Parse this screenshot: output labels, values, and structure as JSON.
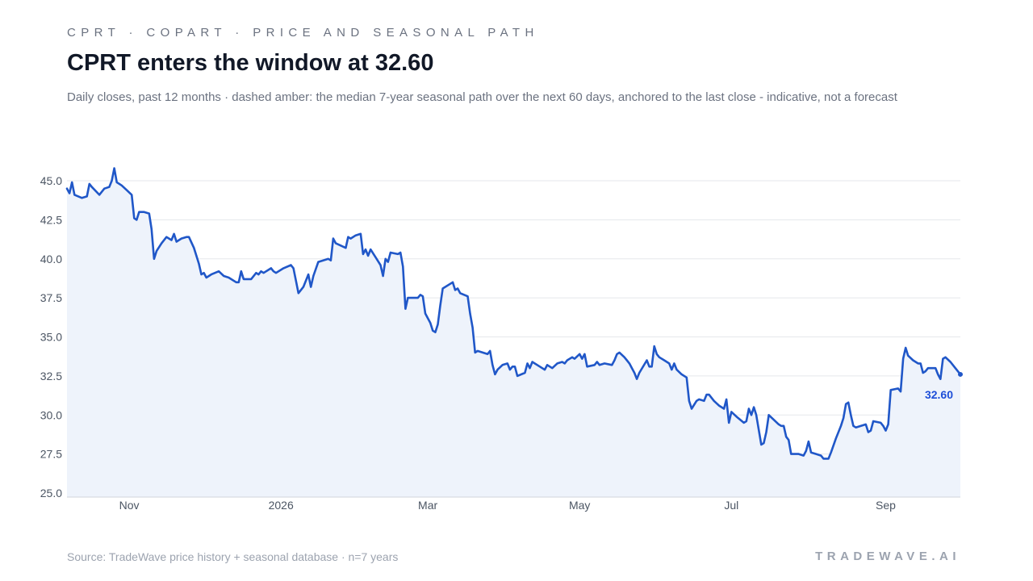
{
  "header": {
    "eyebrow": "CPRT · COPART · PRICE AND SEASONAL PATH",
    "title": "CPRT enters the window at 32.60",
    "subtitle": "Daily closes, past 12 months · dashed amber: the median 7-year seasonal path over the next 60 days, anchored to the last close - indicative, not a forecast"
  },
  "footer": {
    "source": "Source: TradeWave price history + seasonal database · n=7 years",
    "brand": "TRADEWAVE.AI"
  },
  "colors": {
    "line": "#2057c8",
    "area": "#eef3fb",
    "grid": "#e5e7eb",
    "seasonal": "#f59e0b"
  },
  "chart_data": {
    "type": "line",
    "title": "CPRT enters the window at 32.60",
    "xlabel": "",
    "ylabel": "",
    "ylim": [
      25.0,
      45.0
    ],
    "y_ticks": [
      "25.0",
      "27.5",
      "30.0",
      "32.5",
      "35.0",
      "37.5",
      "40.0",
      "42.5",
      "45.0"
    ],
    "x_ticks": [
      {
        "label": "Nov",
        "x": "2025-11-01"
      },
      {
        "label": "2026",
        "x": "2026-01-01"
      },
      {
        "label": "Mar",
        "x": "2026-03-01"
      },
      {
        "label": "May",
        "x": "2026-05-01"
      },
      {
        "label": "Jul",
        "x": "2026-07-01"
      },
      {
        "label": "Sep",
        "x": "2026-09-01"
      }
    ],
    "grid": true,
    "last_close_label": "32.60",
    "series": [
      {
        "points": [
          [
            "2025-10-07",
            44.5
          ],
          [
            "2025-10-08",
            44.2
          ],
          [
            "2025-10-09",
            44.9
          ],
          [
            "2025-10-10",
            44.1
          ],
          [
            "2025-10-13",
            43.9
          ],
          [
            "2025-10-15",
            44.0
          ],
          [
            "2025-10-16",
            44.8
          ],
          [
            "2025-10-17",
            44.6
          ],
          [
            "2025-10-20",
            44.1
          ],
          [
            "2025-10-22",
            44.5
          ],
          [
            "2025-10-24",
            44.6
          ],
          [
            "2025-10-25",
            45.0
          ],
          [
            "2025-10-26",
            45.8
          ],
          [
            "2025-10-27",
            44.9
          ],
          [
            "2025-10-29",
            44.7
          ],
          [
            "2025-10-31",
            44.4
          ],
          [
            "2025-11-02",
            44.1
          ],
          [
            "2025-11-03",
            42.6
          ],
          [
            "2025-11-04",
            42.5
          ],
          [
            "2025-11-05",
            43.0
          ],
          [
            "2025-11-07",
            43.0
          ],
          [
            "2025-11-09",
            42.9
          ],
          [
            "2025-11-10",
            41.9
          ],
          [
            "2025-11-11",
            40.0
          ],
          [
            "2025-11-12",
            40.5
          ],
          [
            "2025-11-14",
            41.0
          ],
          [
            "2025-11-16",
            41.4
          ],
          [
            "2025-11-17",
            41.3
          ],
          [
            "2025-11-18",
            41.2
          ],
          [
            "2025-11-19",
            41.6
          ],
          [
            "2025-11-20",
            41.1
          ],
          [
            "2025-11-22",
            41.3
          ],
          [
            "2025-11-24",
            41.4
          ],
          [
            "2025-11-25",
            41.4
          ],
          [
            "2025-11-27",
            40.7
          ],
          [
            "2025-11-29",
            39.7
          ],
          [
            "2025-11-30",
            39.0
          ],
          [
            "2025-12-01",
            39.1
          ],
          [
            "2025-12-02",
            38.8
          ],
          [
            "2025-12-04",
            39.0
          ],
          [
            "2025-12-07",
            39.2
          ],
          [
            "2025-12-09",
            38.9
          ],
          [
            "2025-12-11",
            38.8
          ],
          [
            "2025-12-14",
            38.5
          ],
          [
            "2025-12-15",
            38.5
          ],
          [
            "2025-12-16",
            39.2
          ],
          [
            "2025-12-17",
            38.7
          ],
          [
            "2025-12-20",
            38.7
          ],
          [
            "2025-12-22",
            39.1
          ],
          [
            "2025-12-23",
            39.0
          ],
          [
            "2025-12-24",
            39.2
          ],
          [
            "2025-12-25",
            39.1
          ],
          [
            "2025-12-28",
            39.4
          ],
          [
            "2025-12-29",
            39.2
          ],
          [
            "2025-12-30",
            39.1
          ],
          [
            "2026-01-02",
            39.4
          ],
          [
            "2026-01-05",
            39.6
          ],
          [
            "2026-01-06",
            39.4
          ],
          [
            "2026-01-07",
            38.6
          ],
          [
            "2026-01-08",
            37.8
          ],
          [
            "2026-01-10",
            38.2
          ],
          [
            "2026-01-12",
            39.0
          ],
          [
            "2026-01-13",
            38.2
          ],
          [
            "2026-01-14",
            38.9
          ],
          [
            "2026-01-16",
            39.8
          ],
          [
            "2026-01-20",
            40.0
          ],
          [
            "2026-01-21",
            39.9
          ],
          [
            "2026-01-22",
            41.3
          ],
          [
            "2026-01-23",
            41.0
          ],
          [
            "2026-01-27",
            40.7
          ],
          [
            "2026-01-28",
            41.4
          ],
          [
            "2026-01-29",
            41.3
          ],
          [
            "2026-01-31",
            41.5
          ],
          [
            "2026-02-02",
            41.6
          ],
          [
            "2026-02-03",
            40.3
          ],
          [
            "2026-02-04",
            40.6
          ],
          [
            "2026-02-05",
            40.2
          ],
          [
            "2026-02-06",
            40.6
          ],
          [
            "2026-02-08",
            40.1
          ],
          [
            "2026-02-10",
            39.6
          ],
          [
            "2026-02-11",
            38.9
          ],
          [
            "2026-02-12",
            40.0
          ],
          [
            "2026-02-13",
            39.8
          ],
          [
            "2026-02-14",
            40.4
          ],
          [
            "2026-02-17",
            40.3
          ],
          [
            "2026-02-18",
            40.4
          ],
          [
            "2026-02-19",
            39.5
          ],
          [
            "2026-02-20",
            36.8
          ],
          [
            "2026-02-21",
            37.5
          ],
          [
            "2026-02-25",
            37.5
          ],
          [
            "2026-02-26",
            37.7
          ],
          [
            "2026-02-27",
            37.6
          ],
          [
            "2026-02-28",
            36.5
          ],
          [
            "2026-03-02",
            35.9
          ],
          [
            "2026-03-03",
            35.4
          ],
          [
            "2026-03-04",
            35.3
          ],
          [
            "2026-03-05",
            35.8
          ],
          [
            "2026-03-06",
            37.0
          ],
          [
            "2026-03-07",
            38.1
          ],
          [
            "2026-03-11",
            38.5
          ],
          [
            "2026-03-12",
            38.0
          ],
          [
            "2026-03-13",
            38.1
          ],
          [
            "2026-03-14",
            37.8
          ],
          [
            "2026-03-17",
            37.6
          ],
          [
            "2026-03-18",
            36.5
          ],
          [
            "2026-03-19",
            35.6
          ],
          [
            "2026-03-20",
            34.0
          ],
          [
            "2026-03-21",
            34.1
          ],
          [
            "2026-03-25",
            33.9
          ],
          [
            "2026-03-26",
            34.1
          ],
          [
            "2026-03-27",
            33.2
          ],
          [
            "2026-03-28",
            32.6
          ],
          [
            "2026-03-29",
            32.9
          ],
          [
            "2026-03-31",
            33.2
          ],
          [
            "2026-04-02",
            33.3
          ],
          [
            "2026-04-03",
            32.9
          ],
          [
            "2026-04-04",
            33.1
          ],
          [
            "2026-04-05",
            33.1
          ],
          [
            "2026-04-06",
            32.5
          ],
          [
            "2026-04-09",
            32.7
          ],
          [
            "2026-04-10",
            33.3
          ],
          [
            "2026-04-11",
            33.0
          ],
          [
            "2026-04-12",
            33.4
          ],
          [
            "2026-04-15",
            33.1
          ],
          [
            "2026-04-17",
            32.9
          ],
          [
            "2026-04-18",
            33.2
          ],
          [
            "2026-04-20",
            33.0
          ],
          [
            "2026-04-22",
            33.3
          ],
          [
            "2026-04-24",
            33.4
          ],
          [
            "2026-04-25",
            33.3
          ],
          [
            "2026-04-26",
            33.5
          ],
          [
            "2026-04-28",
            33.7
          ],
          [
            "2026-04-29",
            33.6
          ],
          [
            "2026-05-01",
            33.9
          ],
          [
            "2026-05-02",
            33.6
          ],
          [
            "2026-05-03",
            33.9
          ],
          [
            "2026-05-04",
            33.1
          ],
          [
            "2026-05-07",
            33.2
          ],
          [
            "2026-05-08",
            33.4
          ],
          [
            "2026-05-09",
            33.2
          ],
          [
            "2026-05-11",
            33.3
          ],
          [
            "2026-05-14",
            33.2
          ],
          [
            "2026-05-15",
            33.5
          ],
          [
            "2026-05-16",
            33.9
          ],
          [
            "2026-05-17",
            34.0
          ],
          [
            "2026-05-19",
            33.7
          ],
          [
            "2026-05-20",
            33.5
          ],
          [
            "2026-05-21",
            33.3
          ],
          [
            "2026-05-22",
            33.0
          ],
          [
            "2026-05-23",
            32.7
          ],
          [
            "2026-05-24",
            32.3
          ],
          [
            "2026-05-25",
            32.7
          ],
          [
            "2026-05-28",
            33.5
          ],
          [
            "2026-05-29",
            33.1
          ],
          [
            "2026-05-30",
            33.1
          ],
          [
            "2026-05-31",
            34.4
          ],
          [
            "2026-06-01",
            33.9
          ],
          [
            "2026-06-02",
            33.7
          ],
          [
            "2026-06-04",
            33.5
          ],
          [
            "2026-06-06",
            33.3
          ],
          [
            "2026-06-07",
            32.9
          ],
          [
            "2026-06-08",
            33.3
          ],
          [
            "2026-06-09",
            32.9
          ],
          [
            "2026-06-11",
            32.6
          ],
          [
            "2026-06-13",
            32.4
          ],
          [
            "2026-06-14",
            30.9
          ],
          [
            "2026-06-15",
            30.4
          ],
          [
            "2026-06-17",
            30.9
          ],
          [
            "2026-06-18",
            31.0
          ],
          [
            "2026-06-20",
            30.9
          ],
          [
            "2026-06-21",
            31.3
          ],
          [
            "2026-06-22",
            31.3
          ],
          [
            "2026-06-24",
            30.9
          ],
          [
            "2026-06-26",
            30.6
          ],
          [
            "2026-06-28",
            30.4
          ],
          [
            "2026-06-29",
            31.0
          ],
          [
            "2026-06-30",
            29.5
          ],
          [
            "2026-07-01",
            30.2
          ],
          [
            "2026-07-03",
            29.9
          ],
          [
            "2026-07-06",
            29.5
          ],
          [
            "2026-07-07",
            29.6
          ],
          [
            "2026-07-08",
            30.4
          ],
          [
            "2026-07-09",
            30.0
          ],
          [
            "2026-07-10",
            30.5
          ],
          [
            "2026-07-11",
            30.0
          ],
          [
            "2026-07-13",
            28.1
          ],
          [
            "2026-07-14",
            28.2
          ],
          [
            "2026-07-15",
            28.9
          ],
          [
            "2026-07-16",
            30.0
          ],
          [
            "2026-07-18",
            29.7
          ],
          [
            "2026-07-20",
            29.4
          ],
          [
            "2026-07-21",
            29.3
          ],
          [
            "2026-07-22",
            29.3
          ],
          [
            "2026-07-23",
            28.6
          ],
          [
            "2026-07-24",
            28.4
          ],
          [
            "2026-07-25",
            27.5
          ],
          [
            "2026-07-28",
            27.5
          ],
          [
            "2026-07-30",
            27.4
          ],
          [
            "2026-07-31",
            27.7
          ],
          [
            "2026-08-01",
            28.3
          ],
          [
            "2026-08-02",
            27.6
          ],
          [
            "2026-08-04",
            27.5
          ],
          [
            "2026-08-06",
            27.4
          ],
          [
            "2026-08-07",
            27.2
          ],
          [
            "2026-08-09",
            27.2
          ],
          [
            "2026-08-10",
            27.6
          ],
          [
            "2026-08-12",
            28.5
          ],
          [
            "2026-08-14",
            29.3
          ],
          [
            "2026-08-15",
            29.8
          ],
          [
            "2026-08-16",
            30.7
          ],
          [
            "2026-08-17",
            30.8
          ],
          [
            "2026-08-18",
            30.0
          ],
          [
            "2026-08-19",
            29.3
          ],
          [
            "2026-08-20",
            29.2
          ],
          [
            "2026-08-24",
            29.4
          ],
          [
            "2026-08-25",
            28.9
          ],
          [
            "2026-08-26",
            29.0
          ],
          [
            "2026-08-27",
            29.6
          ],
          [
            "2026-08-30",
            29.5
          ],
          [
            "2026-08-31",
            29.3
          ],
          [
            "2026-09-01",
            29.0
          ],
          [
            "2026-09-02",
            29.4
          ],
          [
            "2026-09-03",
            31.6
          ],
          [
            "2026-09-06",
            31.7
          ],
          [
            "2026-09-07",
            31.5
          ],
          [
            "2026-09-08",
            33.6
          ],
          [
            "2026-09-09",
            34.3
          ],
          [
            "2026-09-10",
            33.8
          ],
          [
            "2026-09-12",
            33.5
          ],
          [
            "2026-09-14",
            33.3
          ],
          [
            "2026-09-15",
            33.3
          ],
          [
            "2026-09-16",
            32.7
          ],
          [
            "2026-09-17",
            32.8
          ],
          [
            "2026-09-18",
            33.0
          ],
          [
            "2026-09-21",
            33.0
          ],
          [
            "2026-09-22",
            32.6
          ],
          [
            "2026-09-23",
            32.3
          ],
          [
            "2026-09-24",
            33.6
          ],
          [
            "2026-09-25",
            33.7
          ],
          [
            "2026-09-27",
            33.4
          ],
          [
            "2026-09-29",
            33.0
          ],
          [
            "2026-09-30",
            32.8
          ],
          [
            "2026-10-01",
            32.6
          ]
        ]
      }
    ]
  }
}
